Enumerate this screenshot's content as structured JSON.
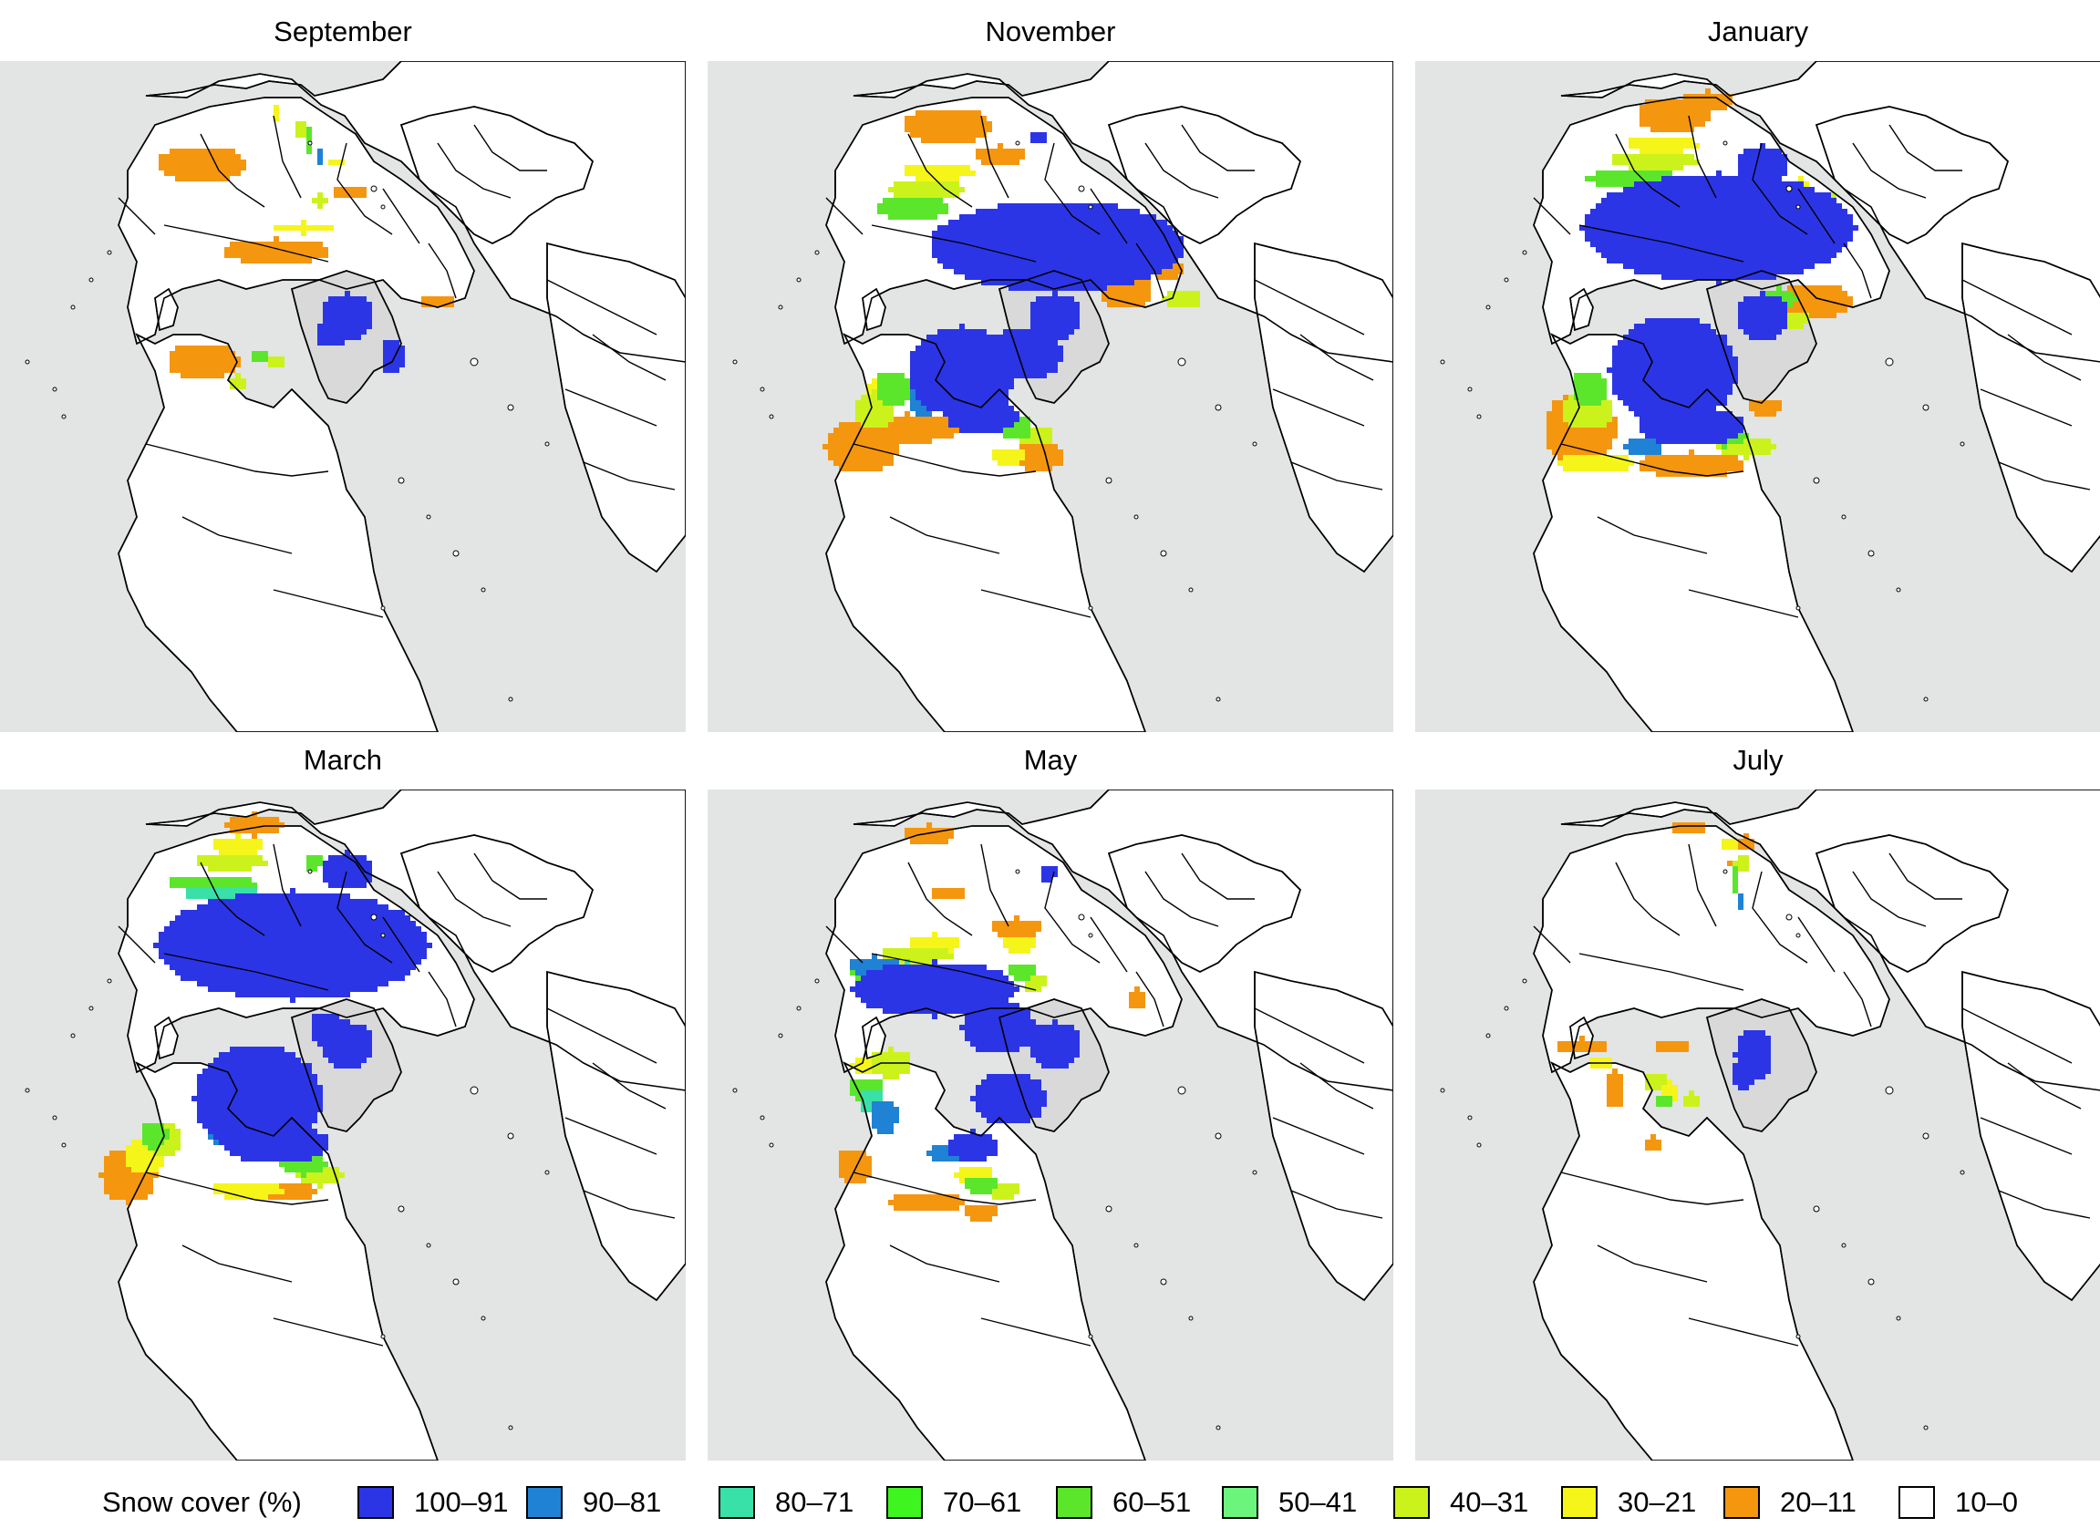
{
  "panels": [
    {
      "title": "September",
      "layers": {
        "c100": [],
        "c90": [],
        "c80": [],
        "c70": [],
        "c60": [],
        "c50": [],
        "c40": [],
        "c30": [],
        "c20": []
      }
    },
    {
      "title": "November",
      "layers": {
        "c100": [],
        "c90": [],
        "c80": [],
        "c70": [],
        "c60": [],
        "c50": [],
        "c40": [],
        "c30": [],
        "c20": []
      }
    },
    {
      "title": "January",
      "layers": {
        "c100": [],
        "c90": [],
        "c80": [],
        "c70": [],
        "c60": [],
        "c50": [],
        "c40": [],
        "c30": [],
        "c20": []
      }
    },
    {
      "title": "March",
      "layers": {
        "c100": [],
        "c90": [],
        "c80": [],
        "c70": [],
        "c60": [],
        "c50": [],
        "c40": [],
        "c30": [],
        "c20": []
      }
    },
    {
      "title": "May",
      "layers": {
        "c100": [],
        "c90": [],
        "c80": [],
        "c70": [],
        "c60": [],
        "c50": [],
        "c40": [],
        "c30": [],
        "c20": []
      }
    },
    {
      "title": "July",
      "layers": {
        "c100": [],
        "c90": [],
        "c80": [],
        "c70": [],
        "c60": [],
        "c50": [],
        "c40": [],
        "c30": [],
        "c20": []
      }
    }
  ],
  "colors": {
    "ocean": "#e2e5e3",
    "land": "#ffffff",
    "greenland_ice": "#d9d9d9",
    "border": "#000000"
  },
  "legend": {
    "title": "Snow cover (%)",
    "items": [
      {
        "key": "c100",
        "label": "100–91",
        "color": "#2b35e6"
      },
      {
        "key": "c90",
        "label": "90–81",
        "color": "#1f82d4"
      },
      {
        "key": "c80",
        "label": "80–71",
        "color": "#39e0a8"
      },
      {
        "key": "c70",
        "label": "70–61",
        "color": "#3ef520"
      },
      {
        "key": "c60",
        "label": "60–51",
        "color": "#5be62c"
      },
      {
        "key": "c50",
        "label": "50–41",
        "color": "#6cf57c"
      },
      {
        "key": "c40",
        "label": "40–31",
        "color": "#ccf21c"
      },
      {
        "key": "c30",
        "label": "30–21",
        "color": "#f5f51a"
      },
      {
        "key": "c20",
        "label": "20–11",
        "color": "#f5960f"
      },
      {
        "key": "c10",
        "label": "10–0",
        "color": "#ffffff"
      }
    ]
  },
  "polar_note": "snow-cover field over polar stereographic northern hemisphere"
}
